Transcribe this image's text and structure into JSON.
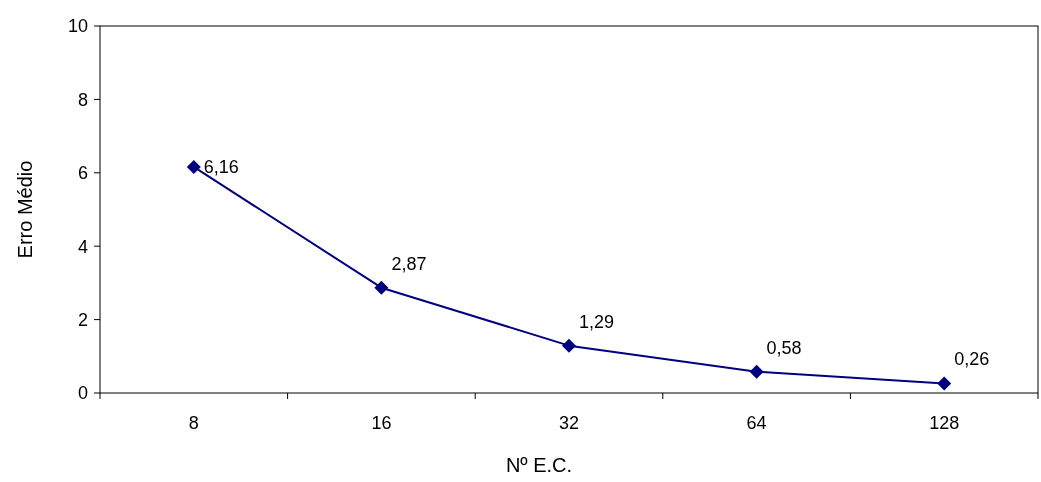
{
  "chart_data": {
    "type": "line",
    "xlabel": "Nº E.C.",
    "ylabel": "Erro Médio",
    "categories": [
      "8",
      "16",
      "32",
      "64",
      "128"
    ],
    "series": [
      {
        "color": "#000080",
        "values": [
          6.16,
          2.87,
          1.29,
          0.58,
          0.26
        ],
        "value_labels": [
          "6,16",
          "2,87",
          "1,29",
          "0,58",
          "0,26"
        ]
      }
    ],
    "ylim": [
      0,
      10
    ],
    "yticks": [
      0,
      2,
      4,
      6,
      8,
      10
    ],
    "grid": false,
    "marker": "diamond",
    "line_style": "solid"
  }
}
